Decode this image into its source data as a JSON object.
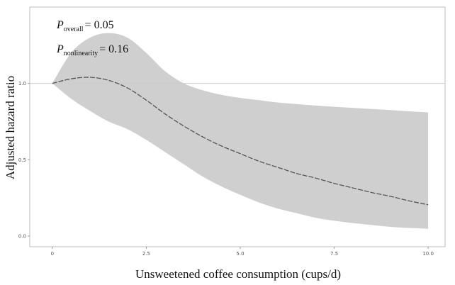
{
  "chart_data": {
    "type": "line",
    "title": "",
    "xlabel": "Unsweetened coffee consumption (cups/d)",
    "ylabel": "Adjusted hazard ratio",
    "xlim": [
      -0.6,
      10.45
    ],
    "ylim": [
      -0.07,
      1.5
    ],
    "x_ticks": [
      0,
      2.5,
      5.0,
      7.5,
      10.0
    ],
    "x_tick_labels": [
      "0",
      "2.5",
      "5.0",
      "7.5",
      "10.0"
    ],
    "y_ticks": [
      0.0,
      0.5,
      1.0
    ],
    "y_tick_labels": [
      "0.0",
      "0.5",
      "1.0"
    ],
    "reference_line": 1.0,
    "grid": false,
    "annotations": [
      {
        "symbol": "P",
        "subscript": "overall",
        "value_text": "= 0.05"
      },
      {
        "symbol": "P",
        "subscript": "nonlinearity",
        "value_text": "= 0.16"
      }
    ],
    "x": [
      0,
      0.5,
      1.0,
      1.5,
      2.0,
      2.5,
      3.0,
      3.5,
      4.0,
      4.5,
      5.0,
      5.5,
      6.0,
      6.5,
      7.0,
      7.5,
      8.0,
      8.5,
      9.0,
      9.5,
      10.0
    ],
    "series": [
      {
        "name": "hazard_ratio",
        "values": [
          1.0,
          1.03,
          1.04,
          1.02,
          0.97,
          0.89,
          0.8,
          0.72,
          0.65,
          0.59,
          0.54,
          0.49,
          0.45,
          0.41,
          0.38,
          0.345,
          0.315,
          0.285,
          0.26,
          0.23,
          0.205
        ]
      },
      {
        "name": "ci_upper",
        "values": [
          1.0,
          1.2,
          1.3,
          1.33,
          1.3,
          1.2,
          1.08,
          1.0,
          0.955,
          0.925,
          0.905,
          0.89,
          0.875,
          0.865,
          0.855,
          0.847,
          0.84,
          0.832,
          0.825,
          0.817,
          0.81
        ]
      },
      {
        "name": "ci_lower",
        "values": [
          1.0,
          0.9,
          0.82,
          0.75,
          0.7,
          0.63,
          0.55,
          0.47,
          0.39,
          0.325,
          0.27,
          0.22,
          0.18,
          0.15,
          0.12,
          0.1,
          0.085,
          0.072,
          0.06,
          0.053,
          0.047
        ]
      }
    ]
  }
}
